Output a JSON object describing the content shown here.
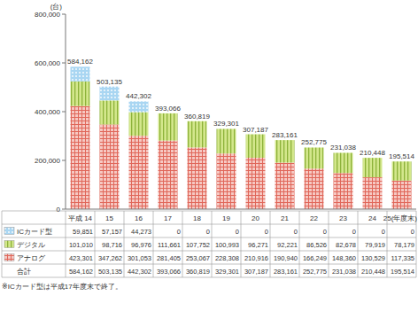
{
  "chart_data": {
    "type": "bar",
    "stacked": true,
    "y_label": "(台)",
    "categories": [
      "平成 14",
      "15",
      "16",
      "17",
      "18",
      "19",
      "20",
      "21",
      "22",
      "23",
      "24",
      "25(年度末)"
    ],
    "series": [
      {
        "name": "ICカード型",
        "color": "#a9d6f2",
        "values": [
          59851,
          57157,
          44273,
          0,
          0,
          0,
          0,
          0,
          0,
          0,
          0,
          0
        ],
        "value_labels": [
          "59,851",
          "57,157",
          "44,273",
          "0",
          "0",
          "0",
          "0",
          "0",
          "0",
          "0",
          "0",
          "0"
        ]
      },
      {
        "name": "デジタル",
        "color": "#d3e78c",
        "values": [
          101010,
          98716,
          96976,
          111661,
          107752,
          100993,
          96271,
          92221,
          86526,
          82678,
          79919,
          78179
        ],
        "value_labels": [
          "101,010",
          "98,716",
          "96,976",
          "111,661",
          "107,752",
          "100,993",
          "96,271",
          "92,221",
          "86,526",
          "82,678",
          "79,919",
          "78,179"
        ]
      },
      {
        "name": "アナログ",
        "color": "#f6c8c2",
        "values": [
          423301,
          347262,
          301053,
          281405,
          253067,
          228308,
          210916,
          190940,
          166249,
          148360,
          130529,
          117335
        ],
        "value_labels": [
          "423,301",
          "347,262",
          "301,053",
          "281,405",
          "253,067",
          "228,308",
          "210,916",
          "190,940",
          "166,249",
          "148,360",
          "130,529",
          "117,335"
        ]
      }
    ],
    "totals": {
      "name": "合計",
      "values": [
        584162,
        503135,
        442302,
        393066,
        360819,
        329301,
        307187,
        283161,
        252775,
        231038,
        210448,
        195514
      ],
      "value_labels": [
        "584,162",
        "503,135",
        "442,302",
        "393,066",
        "360,819",
        "329,301",
        "307,187",
        "283,161",
        "252,775",
        "231,038",
        "210,448",
        "195,514"
      ]
    },
    "ylim": [
      0,
      800000
    ],
    "yticks": [
      0,
      {
        "value": 200000,
        "label": "200,000"
      },
      {
        "value": 400000,
        "label": "400,000"
      },
      {
        "value": 600000,
        "label": "600,000"
      },
      {
        "value": 800000,
        "label": "800,000"
      }
    ],
    "grid": false,
    "data_labels": true,
    "note": "※ICカード型は平成17年度末で終了。"
  }
}
